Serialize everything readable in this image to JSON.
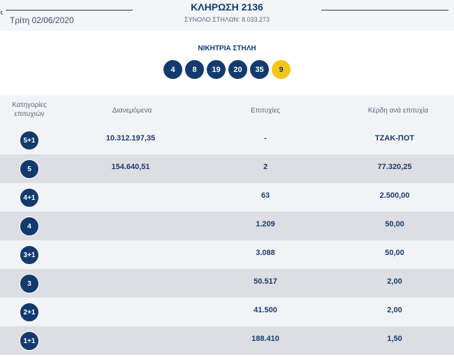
{
  "header": {
    "date": "Τρίτη 02/06/2020",
    "draw_title": "ΚΛΗΡΩΣΗ 2136",
    "total_columns": "ΣΥΝΟΛΟ ΣΤΗΛΩΝ: 8.033.273",
    "back_icon": "chevron-left-icon"
  },
  "winning": {
    "label": "ΝΙΚΗΤΡΙΑ ΣΤΗΛΗ",
    "numbers": [
      "4",
      "8",
      "19",
      "20",
      "35"
    ],
    "bonus": "9",
    "colors": {
      "ball": "#133a6e",
      "bonus": "#f5c518"
    }
  },
  "table": {
    "headers": {
      "category": "Κατηγορίες επιτυχιών",
      "distributed": "Διανεμόμενα",
      "winners": "Επιτυχίες",
      "prize": "Κέρδη ανά επιτυχία"
    },
    "rows": [
      {
        "category": "5+1",
        "distributed": "10.312.197,35",
        "winners": "-",
        "prize": "ΤΖΑΚ-ΠΟΤ"
      },
      {
        "category": "5",
        "distributed": "154.640,51",
        "winners": "2",
        "prize": "77.320,25"
      },
      {
        "category": "4+1",
        "distributed": "",
        "winners": "63",
        "prize": "2.500,00"
      },
      {
        "category": "4",
        "distributed": "",
        "winners": "1.209",
        "prize": "50,00"
      },
      {
        "category": "3+1",
        "distributed": "",
        "winners": "3.088",
        "prize": "50,00"
      },
      {
        "category": "3",
        "distributed": "",
        "winners": "50.517",
        "prize": "2,00"
      },
      {
        "category": "2+1",
        "distributed": "",
        "winners": "41.500",
        "prize": "2,00"
      },
      {
        "category": "1+1",
        "distributed": "",
        "winners": "188.410",
        "prize": "1,50"
      }
    ]
  }
}
